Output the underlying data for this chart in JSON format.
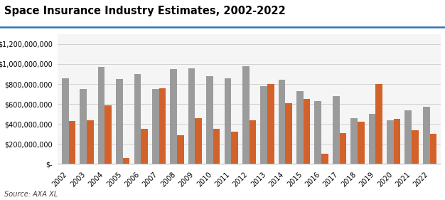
{
  "title": "Space Insurance Industry Estimates, 2002-2022",
  "source": "Source: AXA XL",
  "years": [
    2002,
    2003,
    2004,
    2005,
    2006,
    2007,
    2008,
    2009,
    2010,
    2011,
    2012,
    2013,
    2014,
    2015,
    2016,
    2017,
    2018,
    2019,
    2020,
    2021,
    2022
  ],
  "premiums": [
    860000000,
    750000000,
    970000000,
    850000000,
    900000000,
    750000000,
    950000000,
    960000000,
    880000000,
    860000000,
    980000000,
    780000000,
    840000000,
    730000000,
    630000000,
    680000000,
    460000000,
    500000000,
    440000000,
    540000000,
    570000000
  ],
  "claims": [
    430000000,
    440000000,
    590000000,
    60000000,
    350000000,
    760000000,
    290000000,
    460000000,
    350000000,
    320000000,
    440000000,
    800000000,
    610000000,
    650000000,
    100000000,
    310000000,
    420000000,
    800000000,
    450000000,
    340000000,
    300000000
  ],
  "premium_color": "#9B9B9B",
  "claims_color": "#D2622A",
  "bar_width": 0.38,
  "ylim": [
    0,
    1300000000
  ],
  "yticks": [
    0,
    200000000,
    400000000,
    600000000,
    800000000,
    1000000000,
    1200000000
  ],
  "background_color": "#FFFFFF",
  "plot_bg_color": "#F5F5F5",
  "title_fontsize": 10.5,
  "tick_fontsize": 7,
  "legend_fontsize": 8,
  "source_fontsize": 7
}
